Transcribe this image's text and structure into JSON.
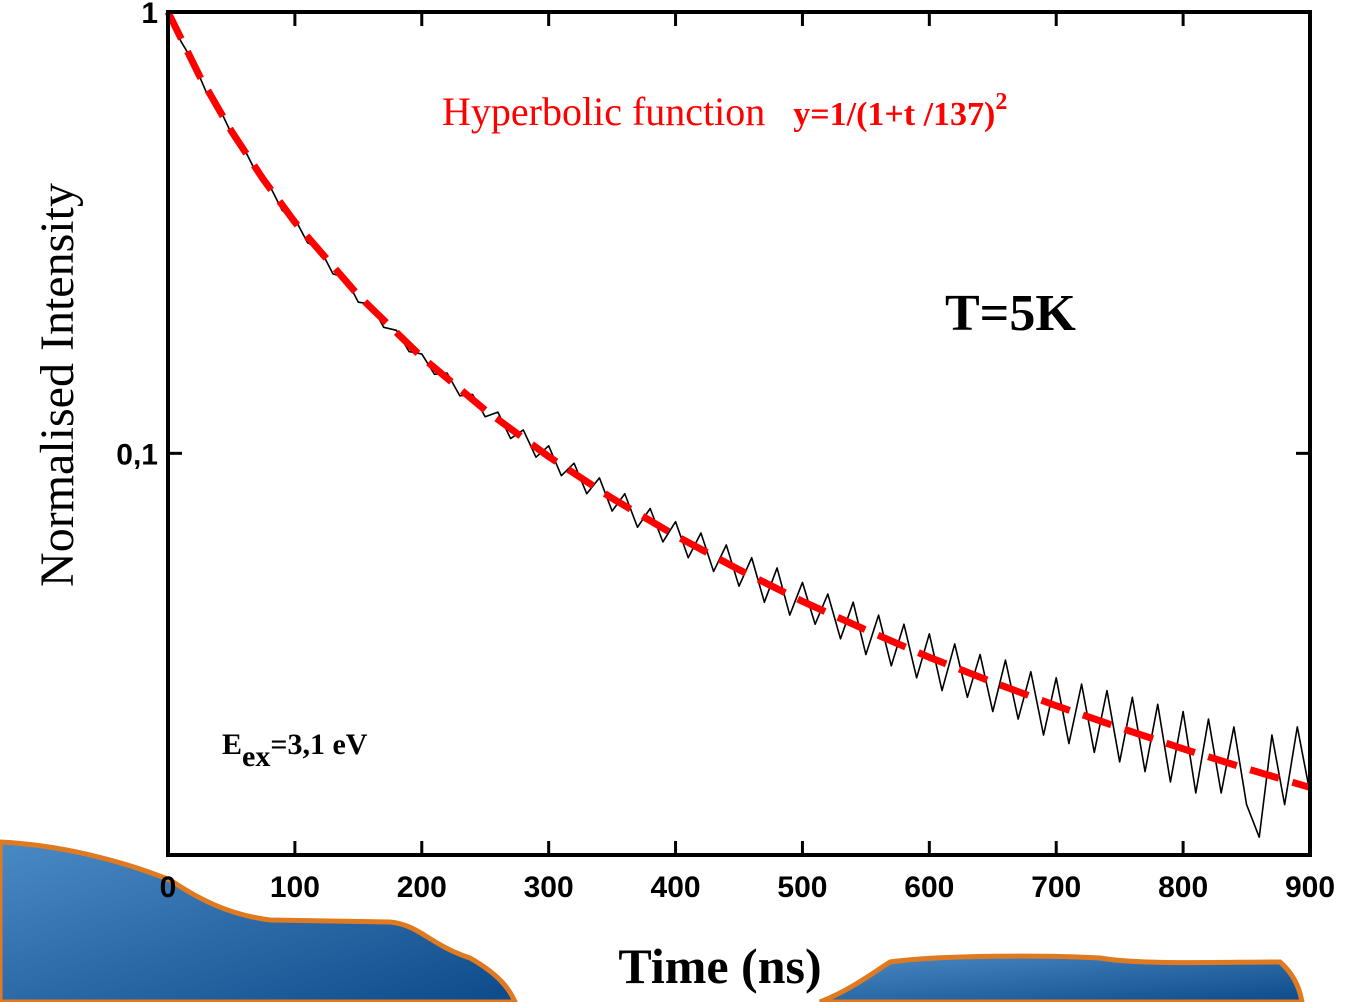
{
  "chart_data": {
    "type": "line",
    "x_label": "Time (ns)",
    "y_label": "Normalised Intensity",
    "annotations": {
      "fit_name": "Hyperbolic function",
      "fit_formula": "y=1/(1+t /137)",
      "fit_exponent": "2",
      "temperature": "T=5K",
      "excitation_symbol": "E",
      "excitation_subscript": "ex",
      "excitation_value": "=3,1 eV"
    },
    "log_y": true,
    "xlim": [
      0,
      900
    ],
    "ylim": [
      0.0123,
      1
    ],
    "xticks": [
      0,
      100,
      200,
      300,
      400,
      500,
      600,
      700,
      800,
      900
    ],
    "yticks": [
      {
        "value": 0.1,
        "label": "0,1"
      },
      1
    ],
    "series": [
      {
        "color": "#000000",
        "dashed": false,
        "x": [
          0,
          10,
          20,
          30,
          40,
          50,
          60,
          70,
          80,
          90,
          100,
          110,
          120,
          130,
          140,
          150,
          160,
          170,
          180,
          190,
          200,
          210,
          220,
          230,
          240,
          250,
          260,
          270,
          280,
          290,
          300,
          310,
          320,
          330,
          340,
          350,
          360,
          370,
          380,
          390,
          400,
          410,
          420,
          430,
          440,
          450,
          460,
          470,
          480,
          490,
          500,
          510,
          520,
          530,
          540,
          550,
          560,
          570,
          580,
          590,
          600,
          610,
          620,
          630,
          640,
          650,
          660,
          670,
          680,
          690,
          700,
          710,
          720,
          730,
          740,
          750,
          760,
          770,
          780,
          790,
          800,
          810,
          820,
          830,
          840,
          850,
          860,
          870,
          880,
          890,
          900
        ],
        "values": [
          1.0,
          0.86,
          0.77,
          0.66,
          0.61,
          0.53,
          0.49,
          0.43,
          0.405,
          0.355,
          0.34,
          0.3,
          0.29,
          0.255,
          0.25,
          0.22,
          0.218,
          0.193,
          0.19,
          0.17,
          0.168,
          0.151,
          0.152,
          0.135,
          0.136,
          0.121,
          0.124,
          0.108,
          0.113,
          0.098,
          0.104,
          0.089,
          0.095,
          0.081,
          0.088,
          0.074,
          0.081,
          0.068,
          0.075,
          0.063,
          0.07,
          0.058,
          0.066,
          0.054,
          0.062,
          0.05,
          0.058,
          0.046,
          0.055,
          0.043,
          0.051,
          0.041,
          0.048,
          0.038,
          0.046,
          0.035,
          0.043,
          0.033,
          0.041,
          0.031,
          0.039,
          0.029,
          0.037,
          0.028,
          0.035,
          0.026,
          0.034,
          0.025,
          0.032,
          0.023,
          0.031,
          0.022,
          0.03,
          0.021,
          0.029,
          0.02,
          0.028,
          0.019,
          0.027,
          0.018,
          0.026,
          0.017,
          0.025,
          0.017,
          0.024,
          0.016,
          0.0135,
          0.023,
          0.016,
          0.024,
          0.017
        ]
      },
      {
        "color": "#ff0000",
        "dashed": true,
        "x": [
          0,
          25,
          50,
          75,
          100,
          150,
          200,
          250,
          300,
          350,
          400,
          450,
          500,
          550,
          600,
          650,
          700,
          750,
          800,
          850,
          900
        ],
        "values": [
          1,
          0.715,
          0.537,
          0.418,
          0.334,
          0.228,
          0.1652,
          0.1253,
          0.0983,
          0.0791,
          0.0651,
          0.0545,
          0.0462,
          0.0398,
          0.0345,
          0.0303,
          0.0268,
          0.0239,
          0.0214,
          0.0193,
          0.0175
        ]
      }
    ]
  }
}
